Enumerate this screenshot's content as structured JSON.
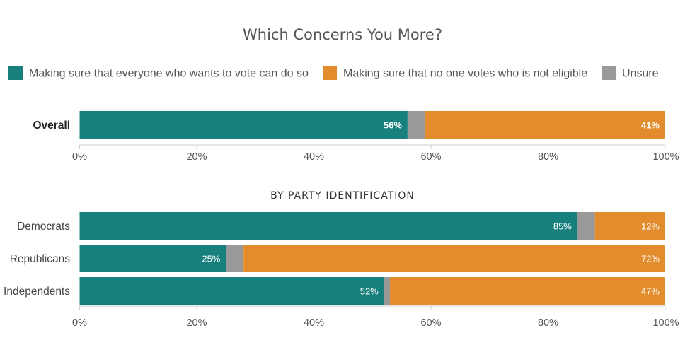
{
  "title": "Which Concerns You More?",
  "legend": [
    {
      "label": "Making sure that everyone who wants to vote can do so",
      "color": "#17807c"
    },
    {
      "label": "Making sure that no one votes who is not eligible",
      "color": "#e38c2d"
    },
    {
      "label": "Unsure",
      "color": "#999999"
    }
  ],
  "chart_data": [
    {
      "type": "bar",
      "orientation": "horizontal",
      "stacked": true,
      "title": "",
      "categories": [
        "Overall"
      ],
      "series": [
        {
          "name": "Making sure that everyone who wants to vote can do so",
          "values": [
            56
          ],
          "labels": [
            "56%"
          ]
        },
        {
          "name": "Unsure",
          "values": [
            3
          ],
          "labels": [
            ""
          ]
        },
        {
          "name": "Making sure that no one votes who is not eligible",
          "values": [
            41
          ],
          "labels": [
            "41%"
          ]
        }
      ],
      "xlim": [
        0,
        100
      ],
      "xticks": [
        "0%",
        "20%",
        "40%",
        "60%",
        "80%",
        "100%"
      ]
    },
    {
      "type": "bar",
      "orientation": "horizontal",
      "stacked": true,
      "title": "BY PARTY IDENTIFICATION",
      "categories": [
        "Democrats",
        "Republicans",
        "Independents"
      ],
      "series": [
        {
          "name": "Making sure that everyone who wants to vote can do so",
          "values": [
            85,
            25,
            52
          ],
          "labels": [
            "85%",
            "25%",
            "52%"
          ]
        },
        {
          "name": "Unsure",
          "values": [
            3,
            3,
            1
          ],
          "labels": [
            "",
            "",
            ""
          ]
        },
        {
          "name": "Making sure that no one votes who is not eligible",
          "values": [
            12,
            72,
            47
          ],
          "labels": [
            "12%",
            "72%",
            "47%"
          ]
        }
      ],
      "xlim": [
        0,
        100
      ],
      "xticks": [
        "0%",
        "20%",
        "40%",
        "60%",
        "80%",
        "100%"
      ]
    }
  ]
}
